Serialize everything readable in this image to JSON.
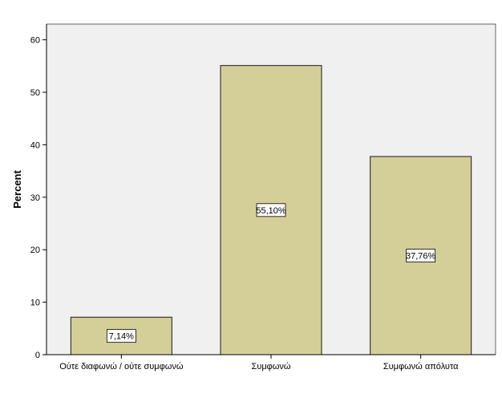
{
  "chart_data": {
    "type": "bar",
    "title": "",
    "xlabel": "",
    "ylabel": "Percent",
    "categories": [
      "Ούτε διαφωνώ / ούτε συμφωνώ",
      "Συμφωνώ",
      "Συμφωνώ απόλυτα"
    ],
    "values": [
      7.14,
      55.1,
      37.76
    ],
    "data_labels": [
      "7,14%",
      "55,10%",
      "37,76%"
    ],
    "ylim": [
      0,
      63
    ],
    "yticks": [
      0,
      10,
      20,
      30,
      40,
      50,
      60
    ],
    "grid": false,
    "legend": "none",
    "colors": {
      "plot_background": "#f0f0f0",
      "bar_fill": "#d4cf98",
      "bar_stroke": "#1a1a1a",
      "axis": "#000000"
    }
  }
}
